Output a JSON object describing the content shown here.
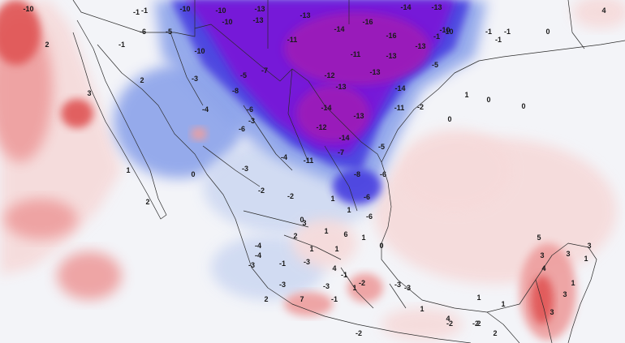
{
  "map": {
    "type": "temperature-anomaly-map",
    "region": "Mexico, southern United States, Gulf of Mexico",
    "colors": {
      "strong_cold": "#7a16d8",
      "very_cold": "#9d1db8",
      "cold": "#4a3fe0",
      "cool": "#8ea4ea",
      "slightly_cool": "#cfd9f2",
      "neutral": "#f3f4f8",
      "slightly_warm": "#f6dada",
      "warm": "#ee9f9f",
      "hot": "#e05656",
      "border": "#2a2a2a"
    },
    "labels": [
      {
        "text": "-10"
      },
      {
        "text": "-1"
      },
      {
        "text": "-10"
      },
      {
        "text": "-10"
      },
      {
        "text": "-13"
      },
      {
        "text": "-14"
      },
      {
        "text": "-13"
      },
      {
        "text": "-6"
      },
      {
        "text": "-5"
      },
      {
        "text": "-10"
      },
      {
        "text": "-13"
      },
      {
        "text": "-16"
      },
      {
        "text": "-13"
      },
      {
        "text": "-11"
      },
      {
        "text": "-14"
      },
      {
        "text": "-16"
      },
      {
        "text": "-13"
      },
      {
        "text": "-11"
      },
      {
        "text": "-10"
      },
      {
        "text": "-1"
      },
      {
        "text": "-13"
      },
      {
        "text": "-10"
      },
      {
        "text": "-5"
      },
      {
        "text": "-7"
      },
      {
        "text": "-12"
      },
      {
        "text": "-13"
      },
      {
        "text": "-4"
      },
      {
        "text": "-14"
      },
      {
        "text": "-13"
      },
      {
        "text": "-14"
      },
      {
        "text": "-12"
      },
      {
        "text": "-6"
      },
      {
        "text": "-13"
      },
      {
        "text": "-14"
      },
      {
        "text": "-5"
      },
      {
        "text": "-11"
      },
      {
        "text": "-4"
      },
      {
        "text": "-7"
      },
      {
        "text": "-8"
      },
      {
        "text": "-6"
      },
      {
        "text": "-6"
      },
      {
        "text": "-2"
      },
      {
        "text": "-2"
      },
      {
        "text": "-3"
      },
      {
        "text": "-2"
      },
      {
        "text": "-3"
      },
      {
        "text": "-3"
      },
      {
        "text": "-8"
      },
      {
        "text": "-5"
      },
      {
        "text": "-4"
      },
      {
        "text": "-3"
      },
      {
        "text": "-6"
      },
      {
        "text": "-3"
      },
      {
        "text": "-4"
      },
      {
        "text": "-1"
      },
      {
        "text": "-2"
      },
      {
        "text": "-3"
      },
      {
        "text": "-1"
      },
      {
        "text": "-3"
      },
      {
        "text": "-3"
      },
      {
        "text": "-3"
      },
      {
        "text": "-1"
      },
      {
        "text": "-2"
      },
      {
        "text": "-2"
      },
      {
        "text": "-1"
      },
      {
        "text": "-1"
      },
      {
        "text": "-1"
      },
      {
        "text": "-1"
      },
      {
        "text": "-1"
      },
      {
        "text": "0"
      },
      {
        "text": "0"
      },
      {
        "text": "0"
      },
      {
        "text": "0"
      },
      {
        "text": "0"
      },
      {
        "text": "0"
      },
      {
        "text": "0"
      },
      {
        "text": "1"
      },
      {
        "text": "1"
      },
      {
        "text": "1"
      },
      {
        "text": "1"
      },
      {
        "text": "1"
      },
      {
        "text": "1"
      },
      {
        "text": "1"
      },
      {
        "text": "1"
      },
      {
        "text": "1"
      },
      {
        "text": "1"
      },
      {
        "text": "1"
      },
      {
        "text": "1"
      },
      {
        "text": "1"
      },
      {
        "text": "1"
      },
      {
        "text": "2"
      },
      {
        "text": "2"
      },
      {
        "text": "2"
      },
      {
        "text": "2"
      },
      {
        "text": "2"
      },
      {
        "text": "2"
      },
      {
        "text": "2"
      },
      {
        "text": "3"
      },
      {
        "text": "3"
      },
      {
        "text": "3"
      },
      {
        "text": "3"
      },
      {
        "text": "3"
      },
      {
        "text": "3"
      },
      {
        "text": "3"
      },
      {
        "text": "4"
      },
      {
        "text": "4"
      },
      {
        "text": "4"
      },
      {
        "text": "4"
      },
      {
        "text": "5"
      },
      {
        "text": "6"
      },
      {
        "text": "7"
      },
      {
        "text": "-2"
      },
      {
        "text": "-6"
      },
      {
        "text": "-11"
      },
      {
        "text": "-10"
      }
    ]
  }
}
